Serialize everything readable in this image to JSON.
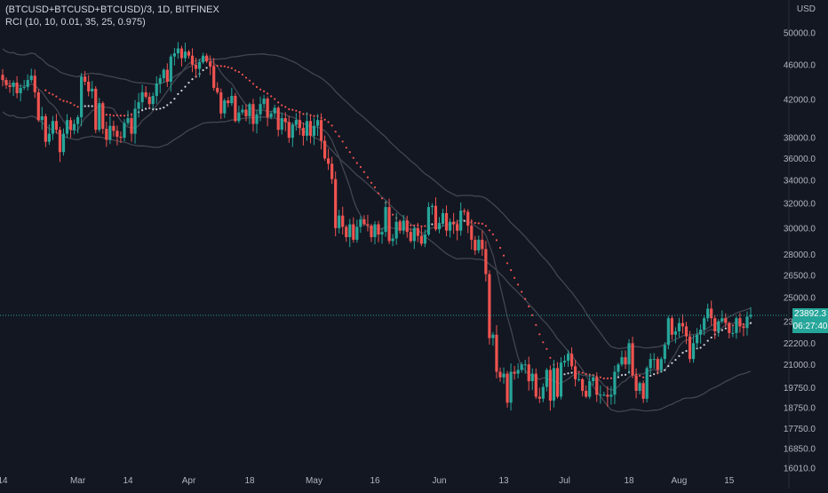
{
  "legend": {
    "title": "(BTCUSD+BTCUSD+BTCUSD)/3, 1D, BITFINEX",
    "indicator": "RCI (10, 10, 0.01, 35, 25, 0.975)"
  },
  "axis": {
    "currency": "USD",
    "y_ticks": [
      "50000.0",
      "46000.0",
      "42000.0",
      "38000.0",
      "36000.0",
      "34000.0",
      "32000.0",
      "30000.0",
      "28000.0",
      "26500.0",
      "25000.0",
      "23500.0",
      "22200.0",
      "21000.0",
      "19750.0",
      "18750.0",
      "17750.0",
      "16850.0",
      "16010.0"
    ],
    "x_ticks": [
      "14",
      "Mar",
      "14",
      "Apr",
      "18",
      "May",
      "16",
      "Jun",
      "13",
      "Jul",
      "18",
      "Aug",
      "15"
    ]
  },
  "last_price": {
    "value": "23892.3",
    "countdown": "06:27:40"
  },
  "colors": {
    "up": "#26a69a",
    "down": "#ef5350",
    "band": "#434651",
    "dots_white": "#d1d4dc",
    "background": "#131722"
  },
  "chart_data": {
    "type": "candlestick",
    "y_scale": "log",
    "ylim": [
      16010,
      52000
    ],
    "x_ticks": [
      "14",
      "Mar",
      "14",
      "Apr",
      "18",
      "May",
      "16",
      "Jun",
      "13",
      "Jul",
      "18",
      "Aug",
      "15"
    ],
    "y_ticks": [
      50000,
      46000,
      42000,
      38000,
      36000,
      34000,
      32000,
      30000,
      28000,
      26500,
      25000,
      23500,
      22200,
      21000,
      19750,
      18750,
      17750,
      16850,
      16010
    ],
    "series": [
      {
        "type": "candles",
        "close": [
          44200,
          43600,
          43400,
          43900,
          42700,
          43300,
          43400,
          44200,
          44700,
          42800,
          39800,
          40200,
          37600,
          38400,
          39700,
          38800,
          36600,
          38400,
          39800,
          38800,
          39400,
          40100,
          44600,
          44000,
          42900,
          43200,
          38800,
          41600,
          38900,
          37800,
          39200,
          38700,
          38100,
          38000,
          39500,
          40000,
          38400,
          41000,
          41700,
          42800,
          42300,
          41500,
          42400,
          43800,
          44400,
          45400,
          44000,
          47000,
          47400,
          48000,
          46800,
          47600,
          47100,
          46000,
          45500,
          46300,
          47100,
          46400,
          45800,
          43300,
          42800,
          40500,
          41900,
          41600,
          42400,
          39700,
          40600,
          40900,
          40200,
          41500,
          39400,
          40400,
          41500,
          42100,
          40100,
          40500,
          41100,
          38800,
          40000,
          39600,
          38000,
          39300,
          39800,
          39000,
          38200,
          39700,
          38200,
          39200,
          39800,
          37700,
          36000,
          35500,
          34100,
          30000,
          31000,
          30100,
          29300,
          30300,
          29100,
          30100,
          30700,
          30300,
          30200,
          29300,
          30300,
          29500,
          29700,
          31700,
          29000,
          29200,
          30500,
          29800,
          30600,
          29700,
          29000,
          30000,
          29400,
          28800,
          29500,
          31700,
          31800,
          29900,
          30400,
          31200,
          29800,
          30500,
          30300,
          29800,
          31400,
          31300,
          30200,
          29100,
          28300,
          29100,
          28400,
          26600,
          22500,
          22700,
          20600,
          20300,
          20500,
          19000,
          20600,
          20500,
          20700,
          21000,
          21000,
          20100,
          20500,
          19300,
          19200,
          19800,
          20700,
          19100,
          20800,
          19300,
          21100,
          21200,
          21600,
          20900,
          20200,
          20200,
          19600,
          19300,
          20100,
          20300,
          19400,
          19400,
          19400,
          19300,
          19400,
          20600,
          21000,
          21400,
          21000,
          22200,
          20400,
          19600,
          20000,
          19200,
          20800,
          21300,
          21300,
          20700,
          21300,
          22100,
          23700,
          22700,
          22900,
          23400,
          23200,
          22600,
          21300,
          22200,
          22700,
          23000,
          23700,
          24300,
          23700,
          22900,
          23500,
          23700,
          23400,
          22800,
          22800,
          23700,
          23200,
          23100,
          23800,
          23900
        ]
      },
      {
        "type": "line",
        "name": "",
        "role": "upper-band"
      },
      {
        "type": "line",
        "name": "",
        "role": "lower-band"
      },
      {
        "type": "line",
        "name": "",
        "role": "moving-average"
      },
      {
        "type": "dots",
        "name": "",
        "role": "dotted-line"
      }
    ]
  }
}
